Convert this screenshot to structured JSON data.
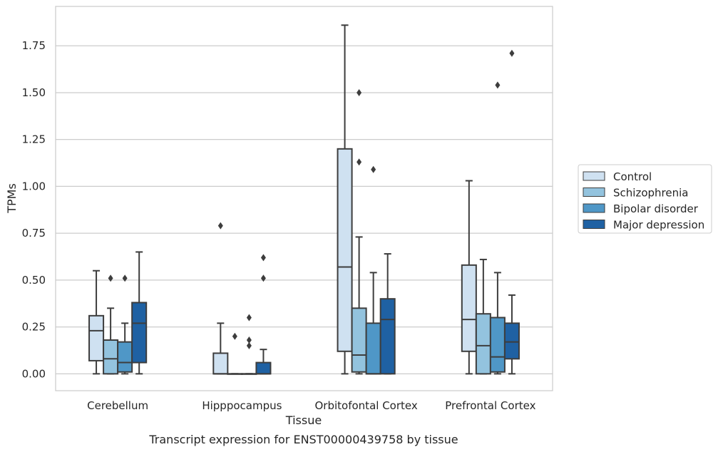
{
  "chart_data": {
    "type": "boxplot",
    "title": "",
    "xlabel": "Tissue",
    "ylabel": "TPMs",
    "caption": "Transcript expression for ENST00000439758 by tissue",
    "ylim": [
      -0.09,
      1.96
    ],
    "yticks": [
      0.0,
      0.25,
      0.5,
      0.75,
      1.0,
      1.25,
      1.5,
      1.75
    ],
    "ytick_labels": [
      "0.00",
      "0.25",
      "0.50",
      "0.75",
      "1.00",
      "1.25",
      "1.50",
      "1.75"
    ],
    "categories": [
      "Cerebellum",
      "Hipppocampus",
      "Orbitofontal Cortex",
      "Prefrontal Cortex"
    ],
    "grid": "horizontal",
    "legend_position": "right",
    "series": [
      {
        "name": "Control",
        "color": "#cfe1f1",
        "boxes": [
          {
            "whislo": 0.0,
            "q1": 0.07,
            "med": 0.23,
            "q3": 0.31,
            "whishi": 0.55,
            "fliers": []
          },
          {
            "whislo": 0.0,
            "q1": 0.0,
            "med": 0.0,
            "q3": 0.11,
            "whishi": 0.27,
            "fliers": [
              0.79
            ]
          },
          {
            "whislo": 0.0,
            "q1": 0.12,
            "med": 0.57,
            "q3": 1.2,
            "whishi": 1.86,
            "fliers": []
          },
          {
            "whislo": 0.0,
            "q1": 0.12,
            "med": 0.29,
            "q3": 0.58,
            "whishi": 1.03,
            "fliers": []
          }
        ]
      },
      {
        "name": "Schizophrenia",
        "color": "#93c3de",
        "boxes": [
          {
            "whislo": 0.0,
            "q1": 0.0,
            "med": 0.08,
            "q3": 0.18,
            "whishi": 0.35,
            "fliers": [
              0.51
            ]
          },
          {
            "whislo": 0.0,
            "q1": 0.0,
            "med": 0.0,
            "q3": 0.0,
            "whishi": 0.0,
            "fliers": [
              0.2
            ]
          },
          {
            "whislo": 0.0,
            "q1": 0.01,
            "med": 0.1,
            "q3": 0.35,
            "whishi": 0.73,
            "fliers": [
              1.13,
              1.5
            ]
          },
          {
            "whislo": 0.0,
            "q1": 0.0,
            "med": 0.15,
            "q3": 0.32,
            "whishi": 0.61,
            "fliers": []
          }
        ]
      },
      {
        "name": "Bipolar disorder",
        "color": "#4f97c7",
        "boxes": [
          {
            "whislo": 0.0,
            "q1": 0.01,
            "med": 0.06,
            "q3": 0.17,
            "whishi": 0.27,
            "fliers": [
              0.51
            ]
          },
          {
            "whislo": 0.0,
            "q1": 0.0,
            "med": 0.0,
            "q3": 0.0,
            "whishi": 0.0,
            "fliers": [
              0.15,
              0.18,
              0.3
            ]
          },
          {
            "whislo": 0.0,
            "q1": 0.0,
            "med": 0.0,
            "q3": 0.27,
            "whishi": 0.54,
            "fliers": [
              1.09
            ]
          },
          {
            "whislo": 0.0,
            "q1": 0.01,
            "med": 0.09,
            "q3": 0.3,
            "whishi": 0.54,
            "fliers": [
              1.54
            ]
          }
        ]
      },
      {
        "name": "Major depression",
        "color": "#1f61a3",
        "boxes": [
          {
            "whislo": 0.0,
            "q1": 0.06,
            "med": 0.27,
            "q3": 0.38,
            "whishi": 0.65,
            "fliers": []
          },
          {
            "whislo": 0.0,
            "q1": 0.0,
            "med": 0.0,
            "q3": 0.06,
            "whishi": 0.13,
            "fliers": [
              0.51,
              0.62
            ]
          },
          {
            "whislo": 0.0,
            "q1": 0.0,
            "med": 0.29,
            "q3": 0.4,
            "whishi": 0.64,
            "fliers": []
          },
          {
            "whislo": 0.0,
            "q1": 0.08,
            "med": 0.17,
            "q3": 0.27,
            "whishi": 0.42,
            "fliers": [
              1.71
            ]
          }
        ]
      }
    ]
  }
}
